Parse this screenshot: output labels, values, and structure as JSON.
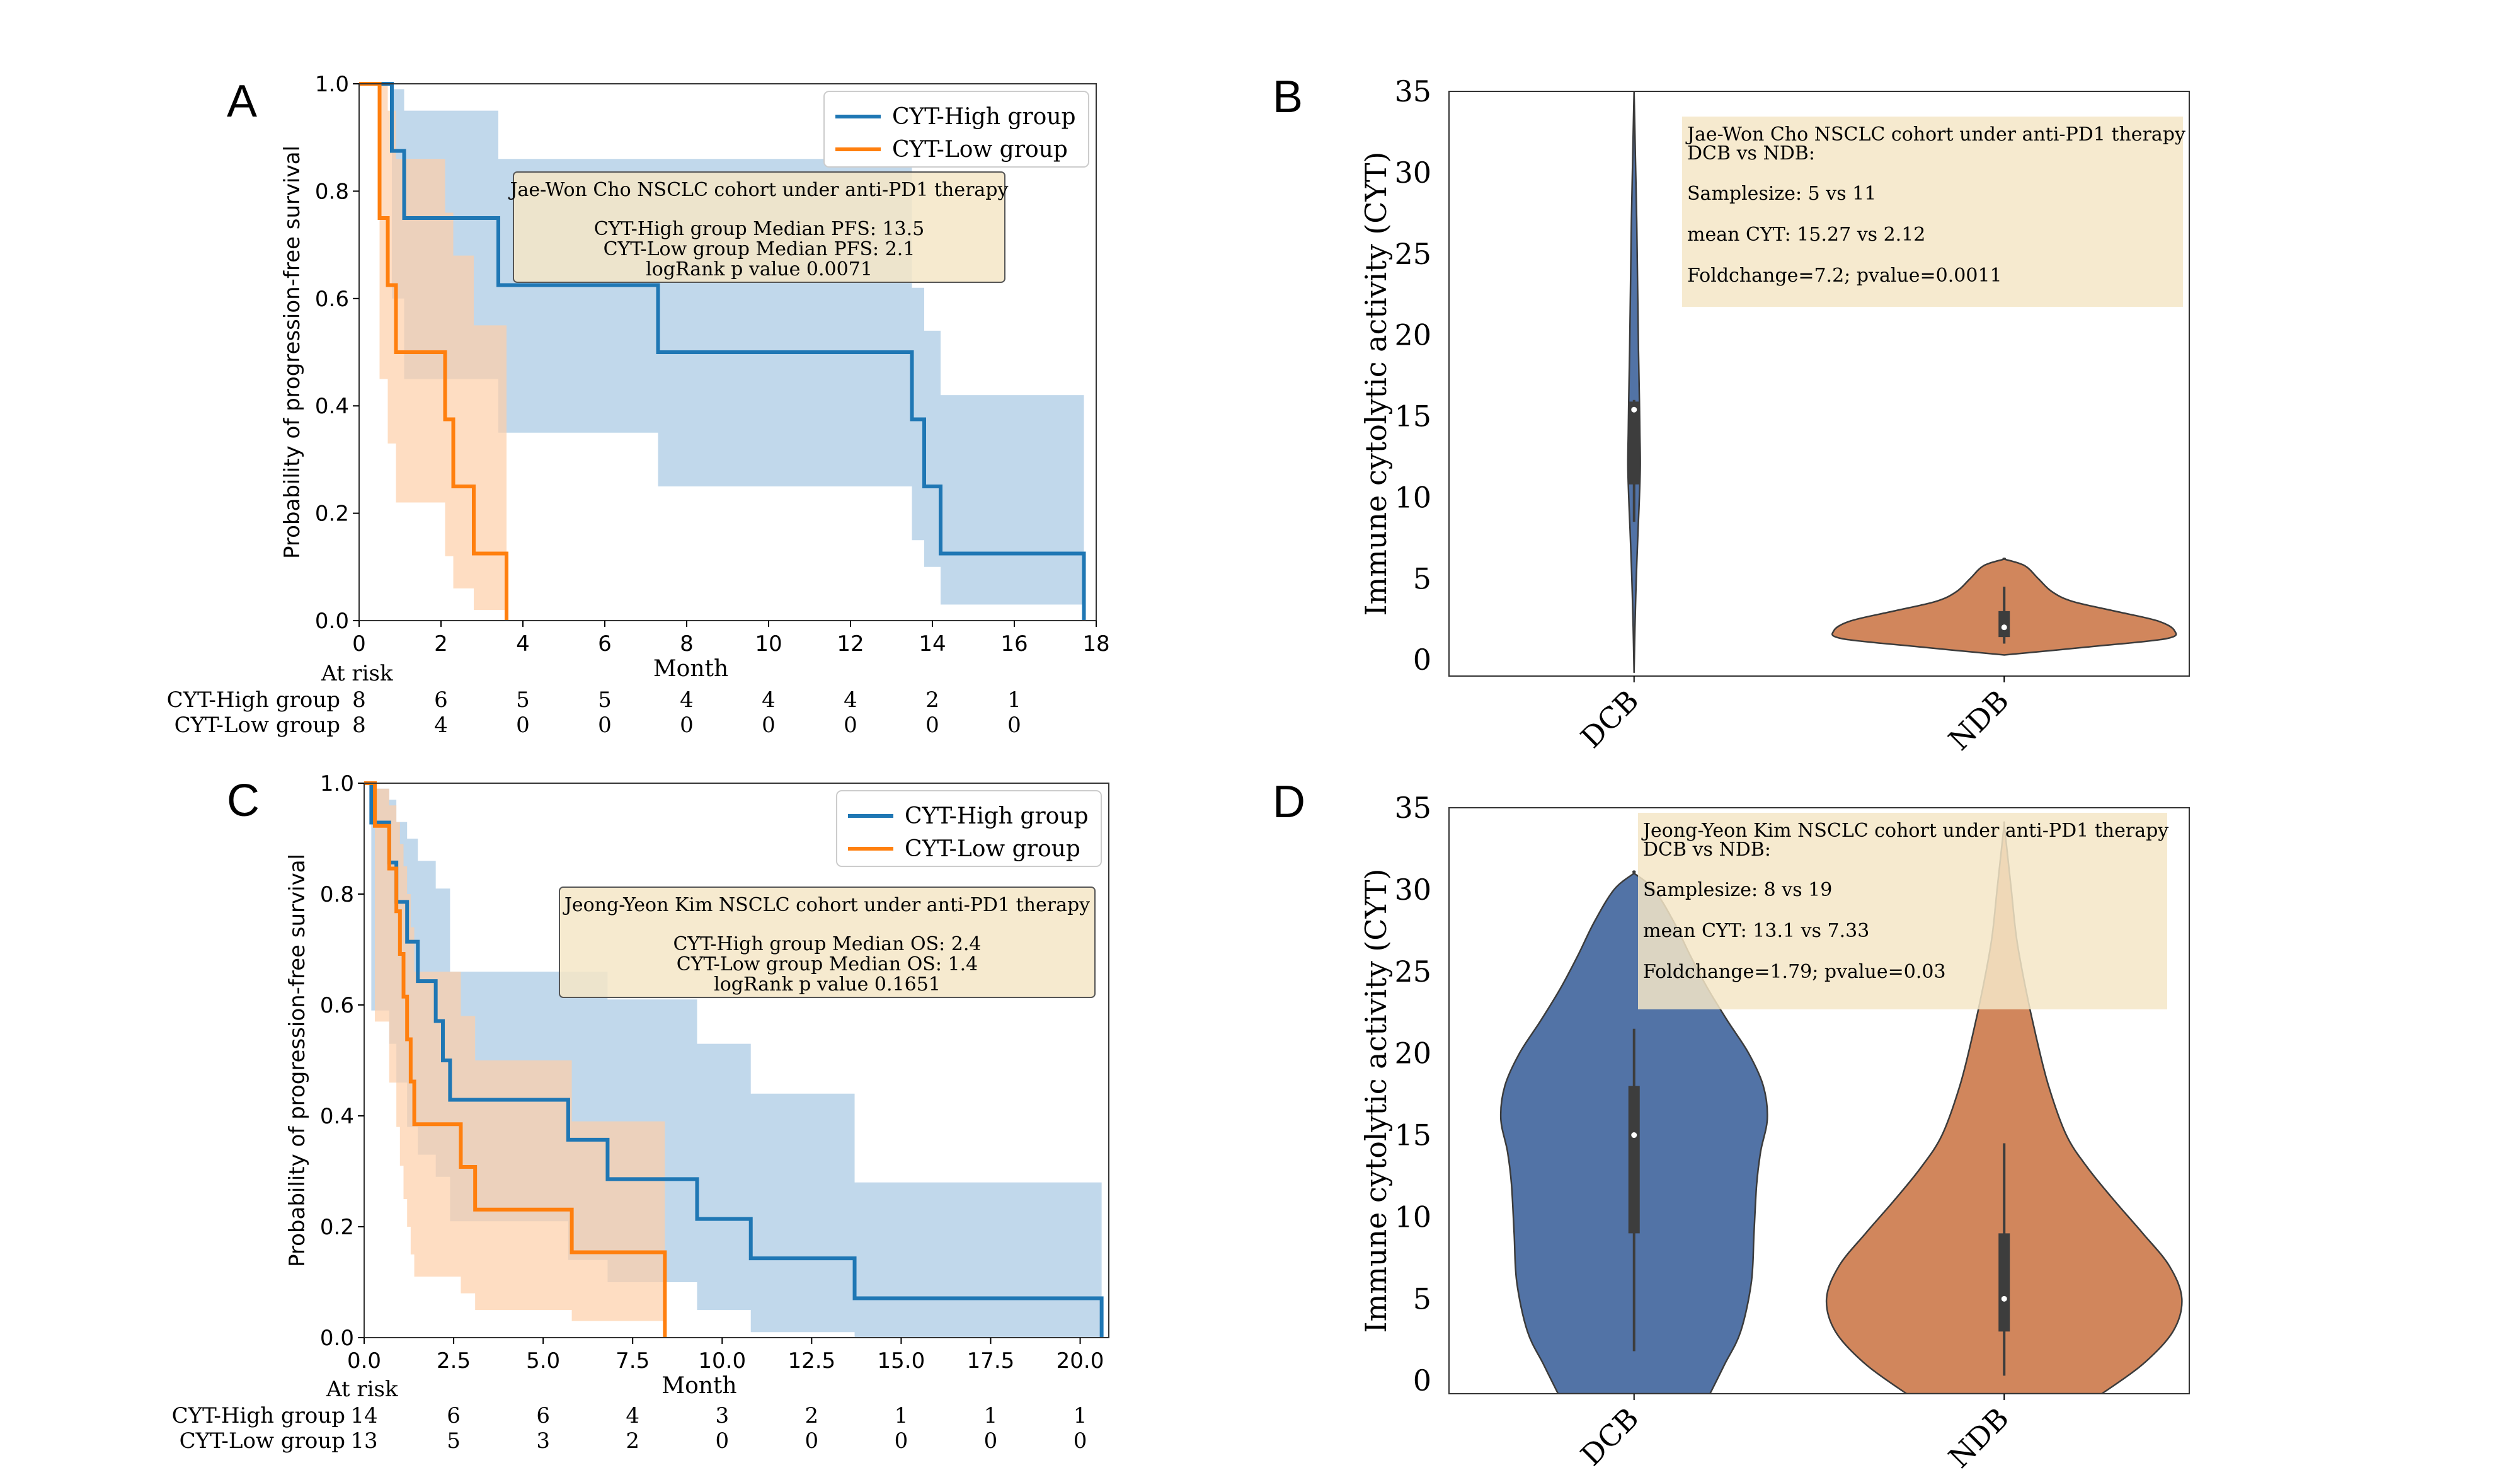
{
  "colors": {
    "high": "#1f77b4",
    "low": "#ff7f0e",
    "high_ci": "#a6c8e3",
    "low_ci": "#fdcfa8",
    "violin_dcb": "#4c6ea3",
    "violin_ndb": "#d08257",
    "info_box": "#f5e6c7"
  },
  "chart_data": [
    {
      "panel": "A",
      "type": "line",
      "ylabel": "Probability of progression-free survival",
      "xlabel": "Month",
      "xlim": [
        0,
        18
      ],
      "ylim": [
        0,
        1.0
      ],
      "xticks": [
        "0",
        "2",
        "4",
        "6",
        "8",
        "10",
        "12",
        "14",
        "16",
        "18"
      ],
      "yticks": [
        "0.0",
        "0.2",
        "0.4",
        "0.6",
        "0.8",
        "1.0"
      ],
      "legend": [
        "CYT-High group",
        "CYT-Low group"
      ],
      "legend_position": "top-right",
      "annotation": {
        "line1": "Jae-Won Cho NSCLC cohort under anti-PD1 therapy",
        "line2": "CYT-High group Median PFS: 13.5",
        "line3": "CYT-Low group Median PFS: 2.1",
        "line4": "logRank p value 0.0071"
      },
      "series": [
        {
          "name": "CYT-High group",
          "steps": [
            [
              0,
              1.0
            ],
            [
              0.8,
              1.0
            ],
            [
              0.8,
              0.875
            ],
            [
              1.1,
              0.875
            ],
            [
              1.1,
              0.75
            ],
            [
              3.4,
              0.75
            ],
            [
              3.4,
              0.625
            ],
            [
              7.3,
              0.625
            ],
            [
              7.3,
              0.5
            ],
            [
              13.5,
              0.5
            ],
            [
              13.5,
              0.375
            ],
            [
              13.8,
              0.375
            ],
            [
              13.8,
              0.25
            ],
            [
              14.2,
              0.25
            ],
            [
              14.2,
              0.125
            ],
            [
              17.7,
              0.125
            ],
            [
              17.7,
              0.0
            ]
          ],
          "ci": [
            [
              0,
              1.0,
              1.0
            ],
            [
              0.8,
              0.99,
              0.6
            ],
            [
              1.1,
              0.95,
              0.45
            ],
            [
              3.4,
              0.86,
              0.35
            ],
            [
              7.3,
              0.86,
              0.25
            ],
            [
              13.5,
              0.62,
              0.15
            ],
            [
              13.8,
              0.54,
              0.1
            ],
            [
              14.2,
              0.42,
              0.03
            ],
            [
              17.7,
              0.42,
              0.0
            ]
          ]
        },
        {
          "name": "CYT-Low group",
          "steps": [
            [
              0,
              1.0
            ],
            [
              0.5,
              1.0
            ],
            [
              0.5,
              0.75
            ],
            [
              0.7,
              0.75
            ],
            [
              0.7,
              0.625
            ],
            [
              0.9,
              0.625
            ],
            [
              0.9,
              0.5
            ],
            [
              2.1,
              0.5
            ],
            [
              2.1,
              0.375
            ],
            [
              2.3,
              0.375
            ],
            [
              2.3,
              0.25
            ],
            [
              2.8,
              0.25
            ],
            [
              2.8,
              0.125
            ],
            [
              3.6,
              0.125
            ],
            [
              3.6,
              0.0
            ]
          ],
          "ci": [
            [
              0,
              1.0,
              1.0
            ],
            [
              0.5,
              1.0,
              0.45
            ],
            [
              0.7,
              0.95,
              0.33
            ],
            [
              0.9,
              0.86,
              0.22
            ],
            [
              2.1,
              0.76,
              0.12
            ],
            [
              2.3,
              0.68,
              0.06
            ],
            [
              2.8,
              0.55,
              0.02
            ],
            [
              3.6,
              0.55,
              0.0
            ]
          ]
        }
      ],
      "at_risk": {
        "title": "At risk",
        "rows": [
          {
            "label": "CYT-High group",
            "values": [
              "8",
              "6",
              "5",
              "5",
              "4",
              "4",
              "4",
              "2",
              "1"
            ]
          },
          {
            "label": "CYT-Low group",
            "values": [
              "8",
              "4",
              "0",
              "0",
              "0",
              "0",
              "0",
              "0",
              "0"
            ]
          }
        ]
      }
    },
    {
      "panel": "B",
      "type": "violin",
      "ylabel": "Immune cytolytic activity (CYT)",
      "categories": [
        "DCB",
        "NDB"
      ],
      "ylim": [
        -1,
        35
      ],
      "yticks": [
        "0",
        "5",
        "10",
        "15",
        "20",
        "25",
        "30",
        "35"
      ],
      "annotation": {
        "line1": "Jae-Won Cho NSCLC cohort under anti-PD1 therapy",
        "line2": "DCB vs NDB:",
        "line3": "Samplesize: 5 vs 11",
        "line4": "mean CYT: 15.27 vs 2.12",
        "line5": "Foldchange=7.2; pvalue=0.0011"
      },
      "violins": [
        {
          "name": "DCB",
          "median": 15.4,
          "q1": 10.8,
          "q3": 15.9,
          "whisker_low": 8.5,
          "whisker_high": 16.0,
          "min": -0.8,
          "max": 35,
          "profile": [
            [
              -0.8,
              0.0
            ],
            [
              2,
              0.02
            ],
            [
              5,
              0.05
            ],
            [
              8,
              0.09
            ],
            [
              10,
              0.12
            ],
            [
              12,
              0.14
            ],
            [
              14,
              0.13
            ],
            [
              16,
              0.12
            ],
            [
              19,
              0.1
            ],
            [
              23,
              0.08
            ],
            [
              27,
              0.06
            ],
            [
              31,
              0.03
            ],
            [
              35,
              0.0
            ]
          ]
        },
        {
          "name": "NDB",
          "median": 2.0,
          "q1": 1.4,
          "q3": 3.0,
          "whisker_low": 1.0,
          "whisker_high": 4.5,
          "min": 0.3,
          "max": 6.2,
          "profile": [
            [
              0.3,
              0.0
            ],
            [
              0.8,
              0.5
            ],
            [
              1.3,
              0.95
            ],
            [
              1.8,
              1.0
            ],
            [
              2.4,
              0.9
            ],
            [
              3.0,
              0.65
            ],
            [
              3.6,
              0.4
            ],
            [
              4.2,
              0.28
            ],
            [
              5.0,
              0.2
            ],
            [
              5.8,
              0.12
            ],
            [
              6.2,
              0.0
            ]
          ]
        }
      ]
    },
    {
      "panel": "C",
      "type": "line",
      "ylabel": "Probability of progression-free survival",
      "xlabel": "Month",
      "xlim": [
        0,
        20.8
      ],
      "ylim": [
        0,
        1.0
      ],
      "xticks": [
        "0.0",
        "2.5",
        "5.0",
        "7.5",
        "10.0",
        "12.5",
        "15.0",
        "17.5",
        "20.0"
      ],
      "yticks": [
        "0.0",
        "0.2",
        "0.4",
        "0.6",
        "0.8",
        "1.0"
      ],
      "legend": [
        "CYT-High group",
        "CYT-Low group"
      ],
      "legend_position": "top-right",
      "annotation": {
        "line1": "Jeong-Yeon Kim NSCLC cohort under anti-PD1 therapy",
        "line2": "CYT-High group Median OS: 2.4",
        "line3": "CYT-Low group Median OS: 1.4",
        "line4": "logRank p value 0.1651"
      },
      "series": [
        {
          "name": "CYT-High group",
          "steps": [
            [
              0,
              1.0
            ],
            [
              0.2,
              1.0
            ],
            [
              0.2,
              0.929
            ],
            [
              0.7,
              0.929
            ],
            [
              0.7,
              0.857
            ],
            [
              0.9,
              0.857
            ],
            [
              0.9,
              0.786
            ],
            [
              1.2,
              0.786
            ],
            [
              1.2,
              0.714
            ],
            [
              1.5,
              0.714
            ],
            [
              1.5,
              0.643
            ],
            [
              2.0,
              0.643
            ],
            [
              2.0,
              0.571
            ],
            [
              2.2,
              0.571
            ],
            [
              2.2,
              0.5
            ],
            [
              2.4,
              0.5
            ],
            [
              2.4,
              0.429
            ],
            [
              5.7,
              0.429
            ],
            [
              5.7,
              0.357
            ],
            [
              6.8,
              0.357
            ],
            [
              6.8,
              0.286
            ],
            [
              9.3,
              0.286
            ],
            [
              9.3,
              0.214
            ],
            [
              10.8,
              0.214
            ],
            [
              10.8,
              0.143
            ],
            [
              13.7,
              0.143
            ],
            [
              13.7,
              0.071
            ],
            [
              20.6,
              0.071
            ],
            [
              20.6,
              0.0
            ]
          ],
          "ci": [
            [
              0,
              1.0,
              1.0
            ],
            [
              0.2,
              0.99,
              0.59
            ],
            [
              0.7,
              0.97,
              0.53
            ],
            [
              0.9,
              0.93,
              0.46
            ],
            [
              1.2,
              0.9,
              0.38
            ],
            [
              1.5,
              0.86,
              0.33
            ],
            [
              2.0,
              0.81,
              0.29
            ],
            [
              2.4,
              0.66,
              0.21
            ],
            [
              5.7,
              0.66,
              0.14
            ],
            [
              6.8,
              0.61,
              0.1
            ],
            [
              9.3,
              0.53,
              0.05
            ],
            [
              10.8,
              0.44,
              0.01
            ],
            [
              13.7,
              0.28,
              0.0
            ],
            [
              20.6,
              0.28,
              0.0
            ]
          ]
        },
        {
          "name": "CYT-Low group",
          "steps": [
            [
              0,
              1.0
            ],
            [
              0.3,
              1.0
            ],
            [
              0.3,
              0.923
            ],
            [
              0.7,
              0.923
            ],
            [
              0.7,
              0.846
            ],
            [
              0.9,
              0.846
            ],
            [
              0.9,
              0.769
            ],
            [
              1.0,
              0.769
            ],
            [
              1.0,
              0.692
            ],
            [
              1.1,
              0.692
            ],
            [
              1.1,
              0.615
            ],
            [
              1.2,
              0.615
            ],
            [
              1.2,
              0.538
            ],
            [
              1.3,
              0.538
            ],
            [
              1.3,
              0.462
            ],
            [
              1.4,
              0.462
            ],
            [
              1.4,
              0.385
            ],
            [
              2.7,
              0.385
            ],
            [
              2.7,
              0.308
            ],
            [
              3.1,
              0.308
            ],
            [
              3.1,
              0.231
            ],
            [
              5.8,
              0.231
            ],
            [
              5.8,
              0.154
            ],
            [
              8.4,
              0.154
            ],
            [
              8.4,
              0.0
            ]
          ],
          "ci": [
            [
              0,
              1.0,
              1.0
            ],
            [
              0.3,
              0.99,
              0.57
            ],
            [
              0.7,
              0.96,
              0.46
            ],
            [
              0.9,
              0.93,
              0.38
            ],
            [
              1.0,
              0.89,
              0.31
            ],
            [
              1.1,
              0.85,
              0.25
            ],
            [
              1.2,
              0.8,
              0.2
            ],
            [
              1.3,
              0.74,
              0.15
            ],
            [
              1.4,
              0.66,
              0.11
            ],
            [
              2.7,
              0.58,
              0.08
            ],
            [
              3.1,
              0.5,
              0.05
            ],
            [
              5.8,
              0.39,
              0.03
            ],
            [
              8.4,
              0.39,
              0.0
            ]
          ]
        }
      ],
      "at_risk": {
        "title": "At risk",
        "rows": [
          {
            "label": "CYT-High group",
            "values": [
              "14",
              "6",
              "6",
              "4",
              "3",
              "2",
              "1",
              "1",
              "1"
            ]
          },
          {
            "label": "CYT-Low group",
            "values": [
              "13",
              "5",
              "3",
              "2",
              "0",
              "0",
              "0",
              "0",
              "0"
            ]
          }
        ]
      }
    },
    {
      "panel": "D",
      "type": "violin",
      "ylabel": "Immune cytolytic activity (CYT)",
      "categories": [
        "DCB",
        "NDB"
      ],
      "ylim": [
        -0.8,
        35
      ],
      "yticks": [
        "0",
        "5",
        "10",
        "15",
        "20",
        "25",
        "30",
        "35"
      ],
      "annotation": {
        "line1": "Jeong-Yeon Kim NSCLC cohort under anti-PD1 therapy",
        "line2": "DCB vs NDB:",
        "line3": "Samplesize: 8 vs 19",
        "line4": "mean CYT: 13.1 vs 7.33",
        "line5": "Foldchange=1.79; pvalue=0.03"
      },
      "violins": [
        {
          "name": "DCB",
          "median": 15.0,
          "q1": 9.0,
          "q3": 18.0,
          "whisker_low": 1.8,
          "whisker_high": 21.5,
          "min": -0.8,
          "max": 31.0,
          "profile": [
            [
              -0.8,
              0.57
            ],
            [
              1,
              0.68
            ],
            [
              3,
              0.8
            ],
            [
              6,
              0.88
            ],
            [
              9,
              0.9
            ],
            [
              12,
              0.92
            ],
            [
              14,
              0.95
            ],
            [
              16,
              1.0
            ],
            [
              18,
              0.97
            ],
            [
              20,
              0.86
            ],
            [
              22,
              0.7
            ],
            [
              24,
              0.55
            ],
            [
              26,
              0.42
            ],
            [
              28,
              0.3
            ],
            [
              30,
              0.15
            ],
            [
              31,
              0.0
            ]
          ]
        },
        {
          "name": "NDB",
          "median": 5.0,
          "q1": 3.0,
          "q3": 9.0,
          "whisker_low": 0.3,
          "whisker_high": 14.5,
          "min": -0.8,
          "max": 34.0,
          "profile": [
            [
              -0.8,
              0.55
            ],
            [
              1,
              0.78
            ],
            [
              3,
              0.95
            ],
            [
              5,
              1.0
            ],
            [
              7,
              0.93
            ],
            [
              9,
              0.78
            ],
            [
              11,
              0.62
            ],
            [
              13,
              0.47
            ],
            [
              15,
              0.35
            ],
            [
              18,
              0.25
            ],
            [
              21,
              0.18
            ],
            [
              24,
              0.12
            ],
            [
              27,
              0.07
            ],
            [
              30,
              0.04
            ],
            [
              33,
              0.01
            ],
            [
              34,
              0.0
            ]
          ]
        }
      ]
    }
  ]
}
